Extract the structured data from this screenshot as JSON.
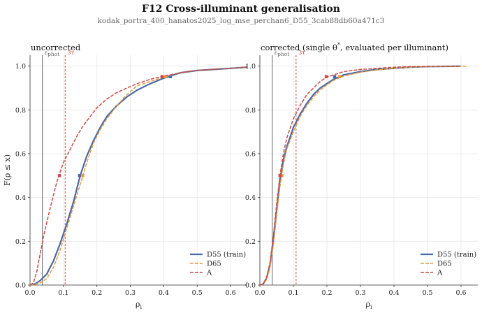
{
  "figure": {
    "title": "F12    Cross-illuminant generalisation",
    "subtitle": "kodak_portra_400_hanatos2025_log_mse_perchan6_D55_3cab88db60a471c3"
  },
  "chart_data": [
    {
      "type": "line",
      "title": "uncorrected",
      "xlabel": "ρ",
      "xlabel_sub": "i",
      "ylabel": "F(ρ ≤ x)",
      "xlim": [
        0,
        0.65
      ],
      "ylim": [
        0,
        1.05
      ],
      "xticks": [
        0.0,
        0.1,
        0.2,
        0.3,
        0.4,
        0.5,
        0.6
      ],
      "yticks": [
        0.0,
        0.2,
        0.4,
        0.6,
        0.8,
        1.0
      ],
      "grid": true,
      "legend_position": "bottom-right",
      "reference_lines": [
        {
          "x": 0.037,
          "label": "phot",
          "label_prefix": "ε",
          "color": "#666666",
          "style": "solid"
        },
        {
          "x": 0.105,
          "label": "3τ",
          "color": "#c94a44",
          "style": "dashed"
        }
      ],
      "series": [
        {
          "name": "D55  (train)",
          "color": "#4a6aa5",
          "style": "solid",
          "points": [
            [
              0,
              0
            ],
            [
              0.015,
              0.005
            ],
            [
              0.03,
              0.02
            ],
            [
              0.05,
              0.05
            ],
            [
              0.07,
              0.11
            ],
            [
              0.09,
              0.19
            ],
            [
              0.11,
              0.28
            ],
            [
              0.13,
              0.38
            ],
            [
              0.15,
              0.5
            ],
            [
              0.17,
              0.59
            ],
            [
              0.19,
              0.66
            ],
            [
              0.21,
              0.72
            ],
            [
              0.23,
              0.77
            ],
            [
              0.26,
              0.82
            ],
            [
              0.29,
              0.86
            ],
            [
              0.32,
              0.89
            ],
            [
              0.36,
              0.92
            ],
            [
              0.4,
              0.945
            ],
            [
              0.42,
              0.955
            ],
            [
              0.45,
              0.97
            ],
            [
              0.5,
              0.98
            ],
            [
              0.55,
              0.985
            ],
            [
              0.6,
              0.99
            ],
            [
              0.65,
              0.995
            ]
          ],
          "median": [
            0.148,
            0.5
          ],
          "p95": [
            0.42,
            0.952
          ]
        },
        {
          "name": "D65",
          "color": "#e39a3f",
          "style": "dashed",
          "points": [
            [
              0,
              0
            ],
            [
              0.015,
              0.003
            ],
            [
              0.03,
              0.01
            ],
            [
              0.05,
              0.03
            ],
            [
              0.07,
              0.08
            ],
            [
              0.09,
              0.16
            ],
            [
              0.11,
              0.26
            ],
            [
              0.13,
              0.36
            ],
            [
              0.15,
              0.46
            ],
            [
              0.17,
              0.56
            ],
            [
              0.19,
              0.65
            ],
            [
              0.21,
              0.71
            ],
            [
              0.23,
              0.76
            ],
            [
              0.26,
              0.82
            ],
            [
              0.29,
              0.87
            ],
            [
              0.32,
              0.91
            ],
            [
              0.36,
              0.93
            ],
            [
              0.4,
              0.95
            ],
            [
              0.45,
              0.97
            ],
            [
              0.5,
              0.98
            ],
            [
              0.55,
              0.985
            ],
            [
              0.6,
              0.99
            ],
            [
              0.65,
              0.995
            ]
          ],
          "median": [
            0.158,
            0.5
          ],
          "p95": [
            0.405,
            0.952
          ]
        },
        {
          "name": "A",
          "color": "#c94a44",
          "style": "dashed",
          "points": [
            [
              0,
              0
            ],
            [
              0.01,
              0.01
            ],
            [
              0.02,
              0.06
            ],
            [
              0.04,
              0.22
            ],
            [
              0.06,
              0.35
            ],
            [
              0.08,
              0.47
            ],
            [
              0.1,
              0.56
            ],
            [
              0.12,
              0.62
            ],
            [
              0.14,
              0.68
            ],
            [
              0.16,
              0.73
            ],
            [
              0.18,
              0.77
            ],
            [
              0.2,
              0.81
            ],
            [
              0.23,
              0.85
            ],
            [
              0.26,
              0.88
            ],
            [
              0.29,
              0.9
            ],
            [
              0.32,
              0.92
            ],
            [
              0.36,
              0.94
            ],
            [
              0.4,
              0.955
            ],
            [
              0.45,
              0.97
            ],
            [
              0.5,
              0.98
            ],
            [
              0.55,
              0.985
            ],
            [
              0.6,
              0.99
            ],
            [
              0.65,
              0.995
            ]
          ],
          "median": [
            0.088,
            0.5
          ],
          "p95": [
            0.395,
            0.952
          ]
        }
      ]
    },
    {
      "type": "line",
      "title": "corrected (single θ",
      "title_sup": "*",
      "title_suffix": ", evaluated per illuminant)",
      "xlabel": "ρ",
      "xlabel_sub": "i",
      "xlim": [
        0,
        0.65
      ],
      "ylim": [
        0,
        1.05
      ],
      "xticks": [
        0.0,
        0.1,
        0.2,
        0.3,
        0.4,
        0.5,
        0.6
      ],
      "yticks": [
        0.0,
        0.2,
        0.4,
        0.6,
        0.8,
        1.0
      ],
      "grid": true,
      "legend_position": "bottom-right",
      "reference_lines": [
        {
          "x": 0.037,
          "label": "phot",
          "label_prefix": "ε",
          "color": "#666666",
          "style": "solid"
        },
        {
          "x": 0.108,
          "label": "3τ",
          "color": "#c94a44",
          "style": "dashed"
        }
      ],
      "series": [
        {
          "name": "D55  (train)",
          "color": "#4a6aa5",
          "style": "solid",
          "points": [
            [
              0,
              0
            ],
            [
              0.01,
              0.005
            ],
            [
              0.02,
              0.03
            ],
            [
              0.03,
              0.09
            ],
            [
              0.04,
              0.2
            ],
            [
              0.05,
              0.34
            ],
            [
              0.06,
              0.48
            ],
            [
              0.07,
              0.57
            ],
            [
              0.08,
              0.63
            ],
            [
              0.1,
              0.72
            ],
            [
              0.12,
              0.78
            ],
            [
              0.14,
              0.83
            ],
            [
              0.16,
              0.87
            ],
            [
              0.18,
              0.9
            ],
            [
              0.2,
              0.92
            ],
            [
              0.22,
              0.94
            ],
            [
              0.25,
              0.96
            ],
            [
              0.3,
              0.975
            ],
            [
              0.35,
              0.985
            ],
            [
              0.4,
              0.99
            ],
            [
              0.45,
              0.995
            ],
            [
              0.5,
              0.998
            ],
            [
              0.55,
              0.999
            ],
            [
              0.6,
              1.0
            ]
          ],
          "median": [
            0.062,
            0.5
          ],
          "p95": [
            0.223,
            0.952
          ]
        },
        {
          "name": "D65",
          "color": "#e39a3f",
          "style": "dashed",
          "points": [
            [
              0,
              0
            ],
            [
              0.01,
              0.004
            ],
            [
              0.02,
              0.025
            ],
            [
              0.03,
              0.08
            ],
            [
              0.04,
              0.18
            ],
            [
              0.05,
              0.32
            ],
            [
              0.06,
              0.45
            ],
            [
              0.07,
              0.55
            ],
            [
              0.08,
              0.62
            ],
            [
              0.1,
              0.7
            ],
            [
              0.12,
              0.77
            ],
            [
              0.14,
              0.82
            ],
            [
              0.16,
              0.86
            ],
            [
              0.18,
              0.89
            ],
            [
              0.2,
              0.915
            ],
            [
              0.22,
              0.935
            ],
            [
              0.25,
              0.955
            ],
            [
              0.3,
              0.972
            ],
            [
              0.35,
              0.983
            ],
            [
              0.4,
              0.99
            ],
            [
              0.45,
              0.995
            ],
            [
              0.5,
              0.998
            ],
            [
              0.55,
              0.999
            ],
            [
              0.6,
              1.0
            ],
            [
              0.62,
              1.0
            ]
          ],
          "median": [
            0.066,
            0.5
          ],
          "p95": [
            0.238,
            0.952
          ]
        },
        {
          "name": "A",
          "color": "#c94a44",
          "style": "dashed",
          "points": [
            [
              0,
              0
            ],
            [
              0.01,
              0.006
            ],
            [
              0.02,
              0.035
            ],
            [
              0.03,
              0.1
            ],
            [
              0.04,
              0.22
            ],
            [
              0.05,
              0.37
            ],
            [
              0.06,
              0.5
            ],
            [
              0.07,
              0.6
            ],
            [
              0.08,
              0.67
            ],
            [
              0.1,
              0.76
            ],
            [
              0.12,
              0.82
            ],
            [
              0.14,
              0.87
            ],
            [
              0.16,
              0.9
            ],
            [
              0.18,
              0.93
            ],
            [
              0.2,
              0.95
            ],
            [
              0.22,
              0.96
            ],
            [
              0.25,
              0.975
            ],
            [
              0.3,
              0.985
            ],
            [
              0.35,
              0.99
            ],
            [
              0.4,
              0.995
            ],
            [
              0.45,
              0.998
            ],
            [
              0.5,
              0.999
            ],
            [
              0.55,
              1.0
            ],
            [
              0.6,
              1.0
            ]
          ],
          "median": [
            0.06,
            0.5
          ],
          "p95": [
            0.198,
            0.952
          ]
        }
      ]
    }
  ]
}
